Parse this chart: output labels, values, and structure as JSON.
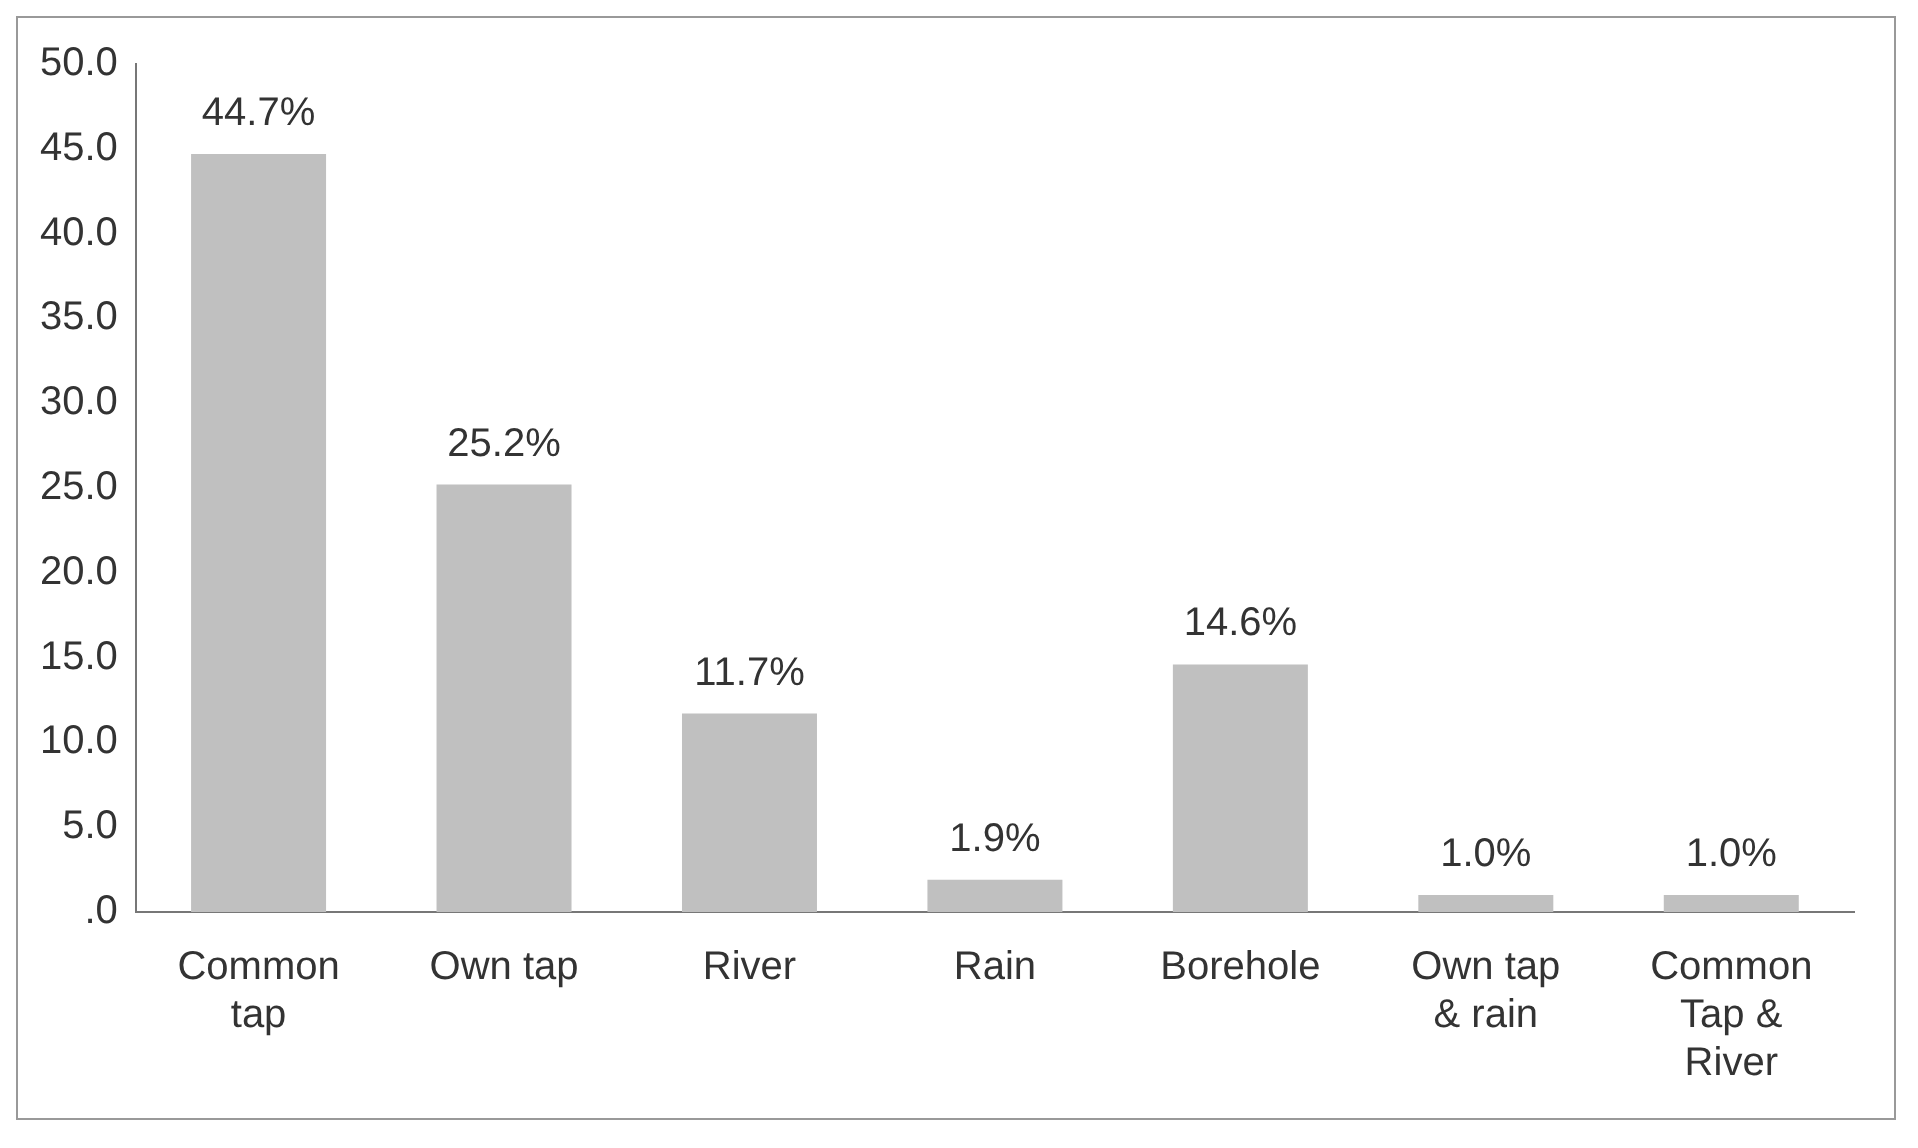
{
  "chart_data": {
    "type": "bar",
    "categories": [
      "Common tap",
      "Own tap",
      "River",
      "Rain",
      "Borehole",
      "Own tap & rain",
      "Common Tap & River"
    ],
    "values": [
      44.7,
      25.2,
      11.7,
      1.9,
      14.6,
      1.0,
      1.0
    ],
    "value_labels": [
      "44.7%",
      "25.2%",
      "11.7%",
      "1.9%",
      "14.6%",
      "1.0%",
      "1.0%"
    ],
    "color": "#c0c0c0",
    "ylim": [
      0,
      50
    ],
    "yticks": [
      {
        "value": 0,
        "label": ".0"
      },
      {
        "value": 5,
        "label": "5.0"
      },
      {
        "value": 10,
        "label": "10.0"
      },
      {
        "value": 15,
        "label": "15.0"
      },
      {
        "value": 20,
        "label": "20.0"
      },
      {
        "value": 25,
        "label": "25.0"
      },
      {
        "value": 30,
        "label": "30.0"
      },
      {
        "value": 35,
        "label": "35.0"
      },
      {
        "value": 40,
        "label": "40.0"
      },
      {
        "value": 45,
        "label": "45.0"
      },
      {
        "value": 50,
        "label": "50.0"
      }
    ],
    "grid": false,
    "legend": false
  }
}
